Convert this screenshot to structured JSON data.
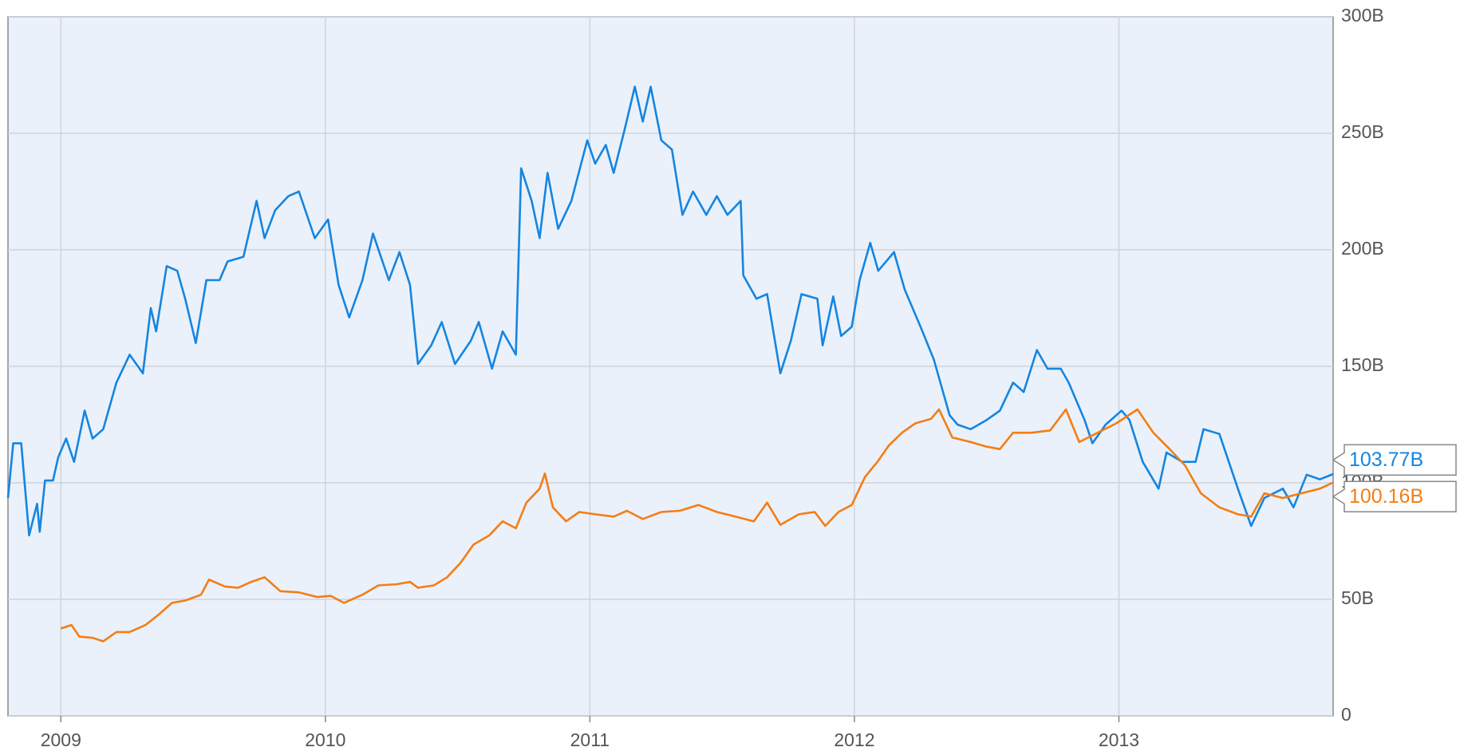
{
  "chart_data": {
    "type": "line",
    "xlim": [
      2008.8,
      2013.81
    ],
    "xticks": [
      2009,
      2010,
      2011,
      2012,
      2013
    ],
    "ylim": [
      0,
      300
    ],
    "yticks": [
      {
        "value": 0,
        "label": "0"
      },
      {
        "value": 50,
        "label": "50B"
      },
      {
        "value": 100,
        "label": "100B"
      },
      {
        "value": 150,
        "label": "150B"
      },
      {
        "value": 200,
        "label": "200B"
      },
      {
        "value": 250,
        "label": "250B"
      },
      {
        "value": 300,
        "label": "300B"
      }
    ],
    "grid": true,
    "series": [
      {
        "color": "#1585e0",
        "end_label": "103.77B",
        "x": [
          2008.8,
          2008.82,
          2008.85,
          2008.88,
          2008.91,
          2008.92,
          2008.94,
          2008.97,
          2008.99,
          2009.02,
          2009.05,
          2009.09,
          2009.12,
          2009.16,
          2009.21,
          2009.26,
          2009.31,
          2009.34,
          2009.36,
          2009.4,
          2009.44,
          2009.47,
          2009.51,
          2009.55,
          2009.6,
          2009.63,
          2009.69,
          2009.74,
          2009.77,
          2009.81,
          2009.86,
          2009.9,
          2009.96,
          2010.01,
          2010.05,
          2010.09,
          2010.14,
          2010.18,
          2010.24,
          2010.28,
          2010.32,
          2010.35,
          2010.4,
          2010.44,
          2010.49,
          2010.55,
          2010.58,
          2010.63,
          2010.67,
          2010.72,
          2010.74,
          2010.78,
          2010.81,
          2010.84,
          2010.88,
          2010.93,
          2010.99,
          2011.02,
          2011.06,
          2011.09,
          2011.13,
          2011.17,
          2011.2,
          2011.23,
          2011.27,
          2011.31,
          2011.35,
          2011.39,
          2011.44,
          2011.48,
          2011.52,
          2011.57,
          2011.58,
          2011.63,
          2011.67,
          2011.72,
          2011.76,
          2011.8,
          2011.86,
          2011.88,
          2011.92,
          2011.95,
          2011.99,
          2012.02,
          2012.06,
          2012.09,
          2012.15,
          2012.19,
          2012.25,
          2012.3,
          2012.36,
          2012.39,
          2012.44,
          2012.5,
          2012.55,
          2012.6,
          2012.64,
          2012.69,
          2012.73,
          2012.78,
          2012.81,
          2012.87,
          2012.9,
          2012.95,
          2013.01,
          2013.04,
          2013.09,
          2013.15,
          2013.18,
          2013.24,
          2013.29,
          2013.32,
          2013.38,
          2013.45,
          2013.5,
          2013.55,
          2013.62,
          2013.66,
          2013.71,
          2013.76,
          2013.81
        ],
        "values": [
          93.5,
          117,
          117,
          77.5,
          91,
          79,
          101,
          101,
          111,
          119,
          109,
          131,
          119,
          123,
          143,
          155,
          147,
          175,
          165,
          193,
          191,
          179,
          160,
          187,
          187,
          195,
          197,
          221,
          205,
          217,
          223,
          225,
          205,
          213,
          185,
          171,
          187,
          207,
          187,
          199,
          185,
          151,
          159,
          169,
          151,
          161,
          169,
          149,
          165,
          155,
          235,
          221,
          205,
          233,
          209,
          221,
          247,
          237,
          245,
          233,
          251,
          270,
          255,
          270,
          247,
          243,
          215,
          225,
          215,
          223,
          215,
          221,
          189,
          179,
          181,
          147,
          161,
          181,
          179,
          159,
          180,
          163,
          167,
          187,
          203,
          191,
          199,
          183,
          167,
          153,
          129,
          125,
          123,
          127,
          131,
          143,
          139,
          157,
          149,
          149,
          143,
          127,
          117,
          125,
          131,
          127,
          109,
          97.5,
          113,
          109,
          109,
          123,
          121,
          97.5,
          81.5,
          93.5,
          97.5,
          89.5,
          103.5,
          101.5,
          103.77
        ]
      },
      {
        "color": "#f57d14",
        "end_label": "100.16B",
        "x": [
          2009.0,
          2009.04,
          2009.07,
          2009.12,
          2009.16,
          2009.21,
          2009.26,
          2009.32,
          2009.37,
          2009.42,
          2009.47,
          2009.53,
          2009.56,
          2009.62,
          2009.67,
          2009.72,
          2009.77,
          2009.83,
          2009.9,
          2009.97,
          2010.02,
          2010.07,
          2010.14,
          2010.2,
          2010.27,
          2010.32,
          2010.35,
          2010.41,
          2010.46,
          2010.51,
          2010.56,
          2010.62,
          2010.67,
          2010.72,
          2010.76,
          2010.81,
          2010.83,
          2010.86,
          2010.91,
          2010.96,
          2011.02,
          2011.09,
          2011.14,
          2011.2,
          2011.27,
          2011.34,
          2011.41,
          2011.48,
          2011.55,
          2011.62,
          2011.67,
          2011.72,
          2011.79,
          2011.85,
          2011.89,
          2011.94,
          2011.99,
          2012.04,
          2012.09,
          2012.13,
          2012.18,
          2012.23,
          2012.29,
          2012.32,
          2012.37,
          2012.44,
          2012.5,
          2012.55,
          2012.6,
          2012.67,
          2012.74,
          2012.8,
          2012.85,
          2012.92,
          2012.99,
          2013.07,
          2013.13,
          2013.2,
          2013.25,
          2013.31,
          2013.38,
          2013.45,
          2013.5,
          2013.55,
          2013.62,
          2013.69,
          2013.76,
          2013.81
        ],
        "values": [
          37.5,
          39,
          34,
          33.5,
          32,
          36,
          36,
          39,
          43.5,
          48.5,
          49.5,
          52,
          58.5,
          55.5,
          55,
          57.5,
          59.5,
          53.5,
          53,
          51,
          51.5,
          48.5,
          52,
          56,
          56.5,
          57.5,
          55,
          56,
          59.5,
          65.5,
          73.5,
          77.5,
          83.5,
          80.5,
          91.5,
          97.5,
          104,
          89.5,
          83.5,
          87.5,
          86.5,
          85.5,
          88,
          84.5,
          87.5,
          88,
          90.5,
          87.5,
          85.5,
          83.5,
          91.5,
          82,
          86.5,
          87.5,
          81.5,
          87.5,
          90.5,
          102.5,
          109.5,
          116,
          121.5,
          125.5,
          127.5,
          131.5,
          119.5,
          117.5,
          115.5,
          114.5,
          121.5,
          121.5,
          122.5,
          131.5,
          117.5,
          121.5,
          125.5,
          131.5,
          121.5,
          113.5,
          107.5,
          95.5,
          89.5,
          86.5,
          85.5,
          95.5,
          93.5,
          95.5,
          97.5,
          100.16
        ]
      }
    ]
  }
}
